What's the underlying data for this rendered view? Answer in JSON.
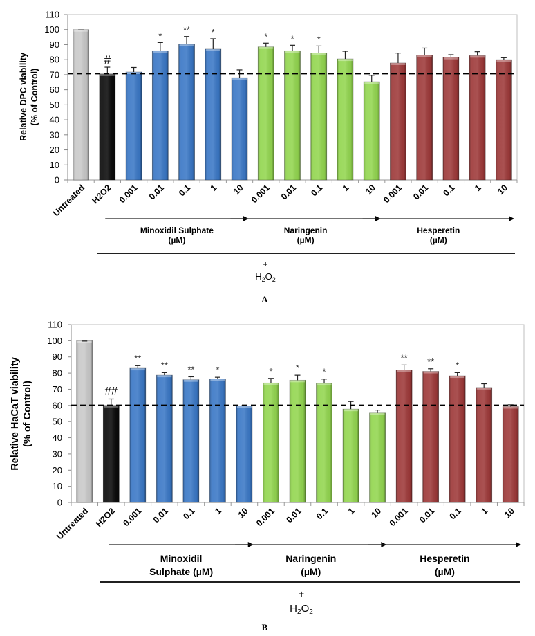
{
  "colors": {
    "untreated": "#c9c9c9",
    "h2o2": "#0b0b0b",
    "minoxidil": "#3b78c6",
    "naringenin": "#93d650",
    "hesperetin": "#9e3a3a"
  },
  "chart_data": [
    {
      "type": "bar",
      "panel_label": "A",
      "title": "",
      "ylabel": "Relative DPC  viability (% of Control)",
      "ylabel_lines": [
        "Relative DPC  viability",
        "(% of Control)"
      ],
      "ylim": [
        0,
        110
      ],
      "yticks": [
        0,
        10,
        20,
        30,
        40,
        50,
        60,
        70,
        80,
        90,
        100,
        110
      ],
      "grid": false,
      "reference_line": {
        "value": 70.7,
        "style": "dashed"
      },
      "categories": [
        "Untreated",
        "H2O2",
        "0.001",
        "0.01",
        "0.1",
        "1",
        "10",
        "0.001",
        "0.01",
        "0.1",
        "1",
        "10",
        "0.001",
        "0.01",
        "0.1",
        "1",
        "10"
      ],
      "groups": [
        "untreated",
        "h2o2",
        "minoxidil",
        "minoxidil",
        "minoxidil",
        "minoxidil",
        "minoxidil",
        "naringenin",
        "naringenin",
        "naringenin",
        "naringenin",
        "naringenin",
        "hesperetin",
        "hesperetin",
        "hesperetin",
        "hesperetin",
        "hesperetin"
      ],
      "values": [
        100,
        70.5,
        71.8,
        85.9,
        90.2,
        87.0,
        68.0,
        88.5,
        85.9,
        84.5,
        80.5,
        65.3,
        77.8,
        83.0,
        81.6,
        82.7,
        80.0
      ],
      "error_upper": [
        100,
        75.0,
        74.8,
        91.4,
        95.4,
        93.9,
        73.2,
        91.0,
        89.6,
        89.1,
        85.6,
        69.6,
        84.4,
        87.7,
        83.3,
        85.3,
        81.3
      ],
      "significance": [
        "",
        "#",
        "",
        "*",
        "**",
        "*",
        "",
        "*",
        "*",
        "*",
        "",
        "",
        "",
        "",
        "",
        "",
        ""
      ],
      "group_labels": [
        {
          "lines": [
            "Minoxidil Sulphate",
            "(µM)"
          ],
          "from": 1,
          "to": 6
        },
        {
          "lines": [
            "Naringenin",
            "(µM)"
          ],
          "from": 6,
          "to": 11
        },
        {
          "lines": [
            "Hesperetin",
            "(µM)"
          ],
          "from": 11,
          "to": 16
        }
      ],
      "plus_label": "+",
      "h2o2_label": {
        "base1": "H",
        "sub1": "2",
        "base2": "O",
        "sub2": "2"
      }
    },
    {
      "type": "bar",
      "panel_label": "B",
      "title": "",
      "ylabel": "Relative HaCaT viability (% of Control)",
      "ylabel_lines": [
        "Relative HaCaT viability",
        "(% of Control)"
      ],
      "ylim": [
        0,
        110
      ],
      "yticks": [
        0,
        10,
        20,
        30,
        40,
        50,
        60,
        70,
        80,
        90,
        100,
        110
      ],
      "grid": false,
      "reference_line": {
        "value": 60.1,
        "style": "dashed"
      },
      "categories": [
        "Untreated",
        "H2O2",
        "0.001",
        "0.01",
        "0.1",
        "1",
        "10",
        "0.001",
        "0.01",
        "0.1",
        "1",
        "10",
        "0.001",
        "0.01",
        "0.1",
        "1",
        "10"
      ],
      "groups": [
        "untreated",
        "h2o2",
        "minoxidil",
        "minoxidil",
        "minoxidil",
        "minoxidil",
        "minoxidil",
        "naringenin",
        "naringenin",
        "naringenin",
        "naringenin",
        "naringenin",
        "hesperetin",
        "hesperetin",
        "hesperetin",
        "hesperetin",
        "hesperetin"
      ],
      "values": [
        100,
        60.0,
        83.0,
        78.7,
        75.9,
        76.4,
        59.7,
        73.9,
        75.6,
        73.6,
        57.7,
        55.3,
        81.9,
        81.1,
        78.3,
        71.1,
        59.3
      ],
      "error_upper": [
        100,
        64.0,
        84.6,
        80.3,
        77.7,
        77.4,
        59.9,
        76.7,
        78.7,
        76.3,
        62.4,
        57.1,
        85.0,
        82.7,
        80.3,
        73.4,
        60.4
      ],
      "significance": [
        "",
        "##",
        "**",
        "**",
        "**",
        "*",
        "",
        "*",
        "*",
        "*",
        "",
        "",
        "**",
        "**",
        "*",
        "",
        ""
      ],
      "group_labels": [
        {
          "lines": [
            "Minoxidil",
            "Sulphate (µM)"
          ],
          "from": 1,
          "to": 6
        },
        {
          "lines": [
            "Naringenin",
            "(µM)"
          ],
          "from": 6,
          "to": 11
        },
        {
          "lines": [
            "Hesperetin",
            "(µM)"
          ],
          "from": 11,
          "to": 16
        }
      ],
      "plus_label": "+",
      "h2o2_label": {
        "base1": "H",
        "sub1": "2",
        "base2": "O",
        "sub2": "2"
      }
    }
  ]
}
